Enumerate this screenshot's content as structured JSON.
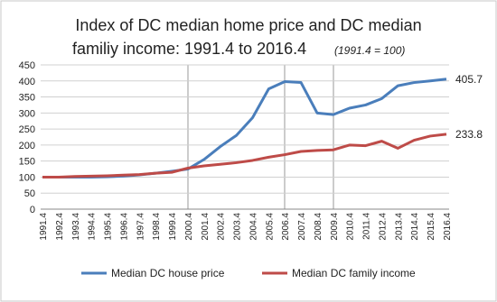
{
  "chart_data": {
    "type": "line",
    "title": "Index  of DC median home price and DC median",
    "title_line2": "familiy income: 1991.4 to 2016.4",
    "subtitle": "(1991.4 = 100)",
    "categories": [
      "1991.4",
      "1992.4",
      "1993.4",
      "1994.4",
      "1995.4",
      "1996.4",
      "1997.4",
      "1998.4",
      "1999.4",
      "2000.4",
      "2001.4",
      "2002.4",
      "2003.4",
      "2004.4",
      "2005.4",
      "2006.4",
      "2007.4",
      "2008.4",
      "2009.4",
      "2010.4",
      "2011.4",
      "2012.4",
      "2013.4",
      "2014.4",
      "2015.4",
      "2016.4"
    ],
    "series": [
      {
        "name": "Median DC house price",
        "color": "#4a7ebb",
        "values": [
          100,
          100,
          100,
          100,
          101,
          103,
          107,
          112,
          118,
          125,
          155,
          195,
          230,
          285,
          375,
          398,
          395,
          300,
          295,
          315,
          325,
          345,
          385,
          395,
          400,
          405.7
        ]
      },
      {
        "name": "Median DC family income",
        "color": "#be4b48",
        "values": [
          100,
          100,
          102,
          103,
          104,
          106,
          108,
          112,
          115,
          128,
          135,
          140,
          145,
          152,
          162,
          170,
          180,
          183,
          185,
          200,
          198,
          212,
          190,
          215,
          228,
          233.8
        ]
      }
    ],
    "ylim": [
      0,
      450
    ],
    "yticks": [
      0,
      50,
      100,
      150,
      200,
      250,
      300,
      350,
      400,
      450
    ],
    "grid": true,
    "legend": "bottom"
  }
}
